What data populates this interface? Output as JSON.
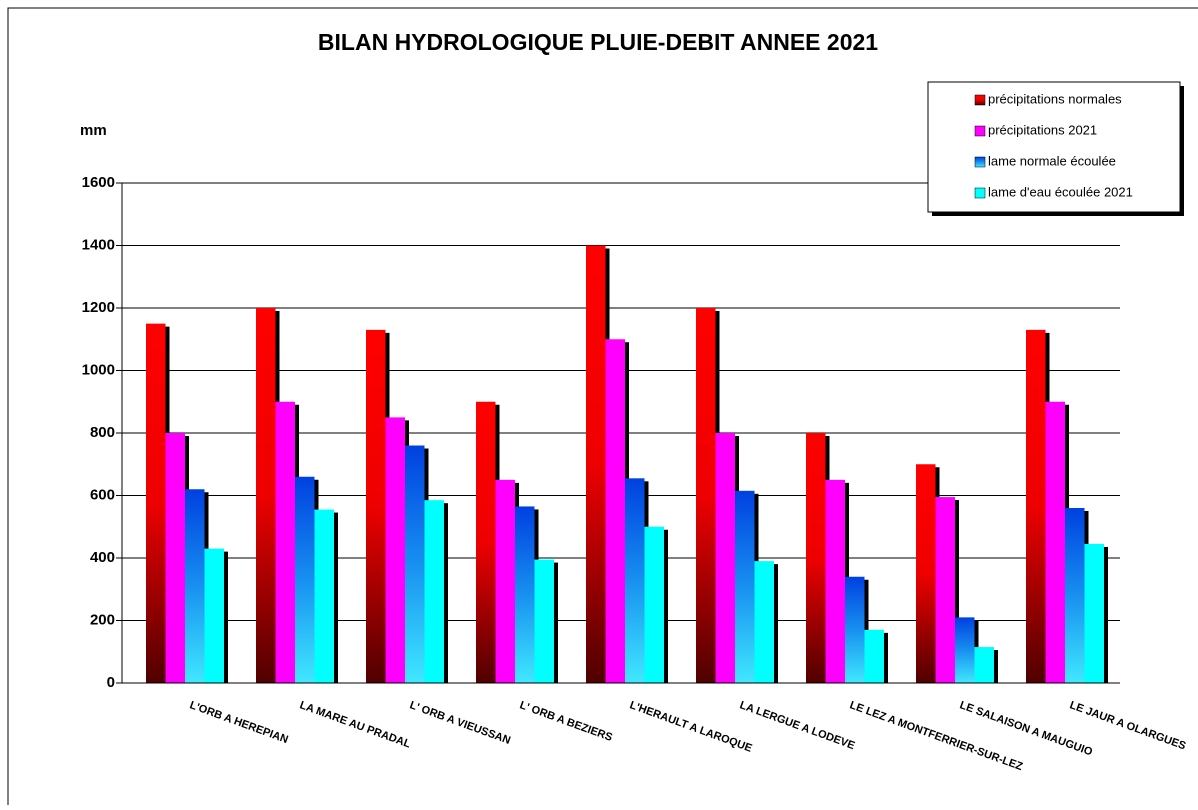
{
  "chart_data": {
    "type": "bar",
    "title": "BILAN HYDROLOGIQUE PLUIE-DEBIT ANNEE 2021",
    "y_label": "mm",
    "categories": [
      "L'ORB A HEREPIAN",
      "LA MARE AU PRADAL",
      "L' ORB A VIEUSSAN",
      "L' ORB A BEZIERS",
      "L'HERAULT A LAROQUE",
      "LA LERGUE A LODEVE",
      "LE LEZ A MONTFERRIER-SUR-LEZ",
      "LE SALAISON A MAUGUIO",
      "LE JAUR A OLARGUES"
    ],
    "series": [
      {
        "name": "précipitations normales",
        "color": "#ff0000",
        "values": [
          1150,
          1200,
          1130,
          900,
          1400,
          1200,
          800,
          700,
          1130
        ]
      },
      {
        "name": "précipitations 2021",
        "color": "#ff00ff",
        "values": [
          800,
          900,
          850,
          650,
          1100,
          800,
          650,
          595,
          900
        ]
      },
      {
        "name": "lame normale écoulée",
        "color": "#0040e0",
        "values": [
          620,
          660,
          760,
          565,
          655,
          615,
          340,
          210,
          560
        ]
      },
      {
        "name": "lame d'eau écoulée 2021",
        "color": "#00ffff",
        "values": [
          430,
          555,
          585,
          395,
          500,
          390,
          170,
          115,
          445
        ]
      }
    ],
    "ylim": [
      0,
      1600
    ],
    "yticks": [
      0,
      200,
      400,
      600,
      800,
      1000,
      1200,
      1400,
      1600
    ],
    "grid": true,
    "legend": "top-right"
  }
}
